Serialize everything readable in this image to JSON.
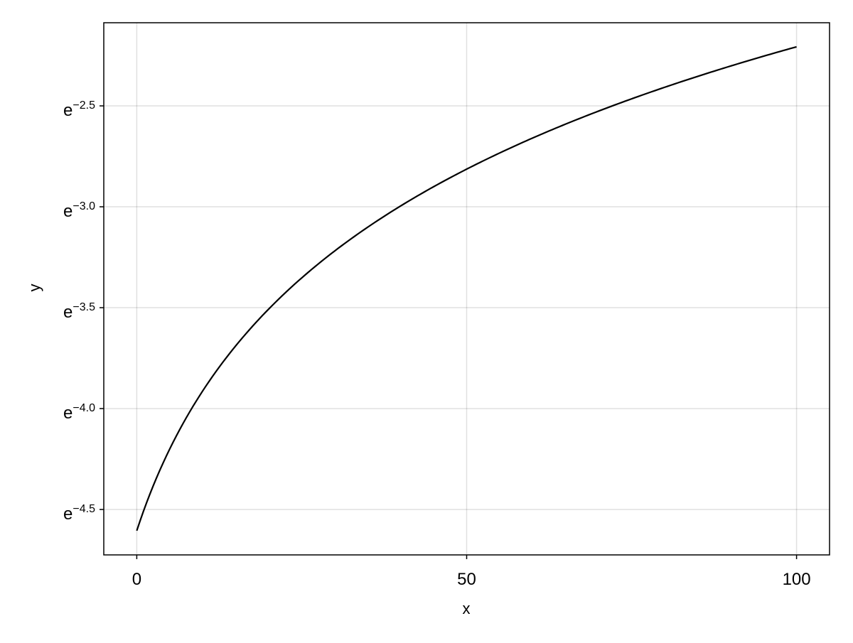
{
  "chart_data": {
    "type": "line",
    "title": "",
    "xlabel": "x",
    "ylabel": "y",
    "xlim": [
      -5,
      105
    ],
    "ylim_ln": [
      -4.725,
      -2.088
    ],
    "yscale": "log (natural)",
    "grid": true,
    "x_ticks": [
      0,
      50,
      100
    ],
    "x_tick_labels": [
      "0",
      "50",
      "100"
    ],
    "y_ticks_ln": [
      -2.5,
      -3.0,
      -3.5,
      -4.0,
      -4.5
    ],
    "y_tick_labels": [
      {
        "base": "e",
        "exp": "−2.5"
      },
      {
        "base": "e",
        "exp": "−3.0"
      },
      {
        "base": "e",
        "exp": "−3.5"
      },
      {
        "base": "e",
        "exp": "−4.0"
      },
      {
        "base": "e",
        "exp": "−4.5"
      }
    ],
    "series": [
      {
        "color": "#000000",
        "x": [
          0,
          5,
          10,
          15,
          20,
          25,
          30,
          35,
          40,
          45,
          50,
          55,
          60,
          65,
          70,
          75,
          80,
          85,
          90,
          95,
          100
        ],
        "y": [
          0.01,
          0.015,
          0.02,
          0.025,
          0.03,
          0.035,
          0.04,
          0.045,
          0.05,
          0.055,
          0.06,
          0.065,
          0.07,
          0.075,
          0.08,
          0.085,
          0.09,
          0.095,
          0.1,
          0.105,
          0.11
        ]
      }
    ]
  }
}
